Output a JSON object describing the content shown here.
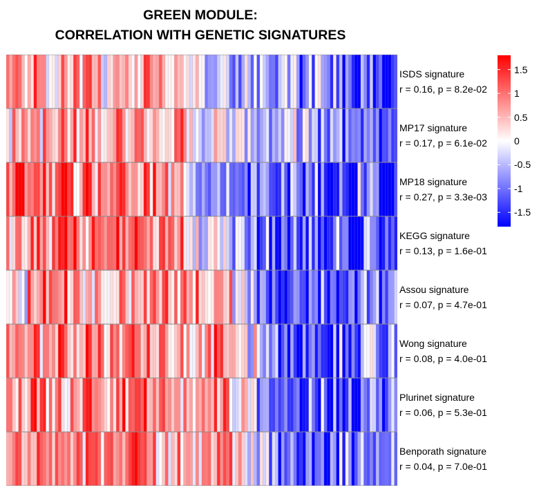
{
  "chart_data": {
    "type": "heatmap",
    "title_lines": [
      "GREEN MODULE:",
      "CORRELATION WITH GENETIC SIGNATURES"
    ],
    "rows": [
      {
        "name": "ISDS signature",
        "stat": "r = 0.16, p = 8.2e-02"
      },
      {
        "name": "MP17 signature",
        "stat": "r = 0.17, p = 6.1e-02"
      },
      {
        "name": "MP18 signature",
        "stat": "r = 0.27, p = 3.3e-03"
      },
      {
        "name": "KEGG signature",
        "stat": "r = 0.13, p = 1.6e-01"
      },
      {
        "name": "Assou signature",
        "stat": "r = 0.07, p = 4.7e-01"
      },
      {
        "name": "Wong signature",
        "stat": "r = 0.08, p = 4.0e-01"
      },
      {
        "name": "Plurinet signature",
        "stat": "r = 0.06, p = 5.3e-01"
      },
      {
        "name": "Benporath signature",
        "stat": "r = 0.04, p = 7.0e-01"
      }
    ],
    "n_columns": 128,
    "row_trend_profiles": [
      [
        [
          0,
          0.6
        ],
        [
          0.45,
          0.5
        ],
        [
          0.55,
          -0.6
        ],
        [
          1,
          -1.3
        ]
      ],
      [
        [
          0,
          0.4
        ],
        [
          0.4,
          0.9
        ],
        [
          0.55,
          -0.2
        ],
        [
          1,
          -1.3
        ]
      ],
      [
        [
          0,
          1.3
        ],
        [
          0.4,
          1.0
        ],
        [
          0.5,
          -0.7
        ],
        [
          1,
          -1.6
        ]
      ],
      [
        [
          0,
          0.2
        ],
        [
          0.15,
          1.2
        ],
        [
          0.45,
          0.9
        ],
        [
          0.65,
          -1.3
        ],
        [
          1,
          -1.2
        ]
      ],
      [
        [
          0,
          -0.2
        ],
        [
          0.1,
          0.9
        ],
        [
          0.55,
          0.7
        ],
        [
          0.7,
          -1.4
        ],
        [
          1,
          -1.0
        ]
      ],
      [
        [
          0,
          0.3
        ],
        [
          0.1,
          1.0
        ],
        [
          0.55,
          0.8
        ],
        [
          0.72,
          -1.4
        ],
        [
          1,
          -0.9
        ]
      ],
      [
        [
          0,
          0.5
        ],
        [
          0.1,
          1.0
        ],
        [
          0.55,
          0.8
        ],
        [
          0.72,
          -1.4
        ],
        [
          1,
          -0.9
        ]
      ],
      [
        [
          0,
          0.3
        ],
        [
          0.1,
          1.0
        ],
        [
          0.55,
          0.8
        ],
        [
          0.72,
          -1.3
        ],
        [
          1,
          -0.9
        ]
      ]
    ],
    "value_range": [
      -1.8,
      1.8
    ],
    "colorscale": {
      "low": "#0000ff",
      "mid": "#ffffff",
      "high": "#ff0000"
    },
    "colorbar_ticks": [
      "1.5",
      "1",
      "0.5",
      "0",
      "-0.5",
      "-1",
      "-1.5"
    ],
    "colorbar_tick_values": [
      1.5,
      1,
      0.5,
      0,
      -0.5,
      -1,
      -1.5
    ],
    "legend_position": "right",
    "grid": true
  }
}
